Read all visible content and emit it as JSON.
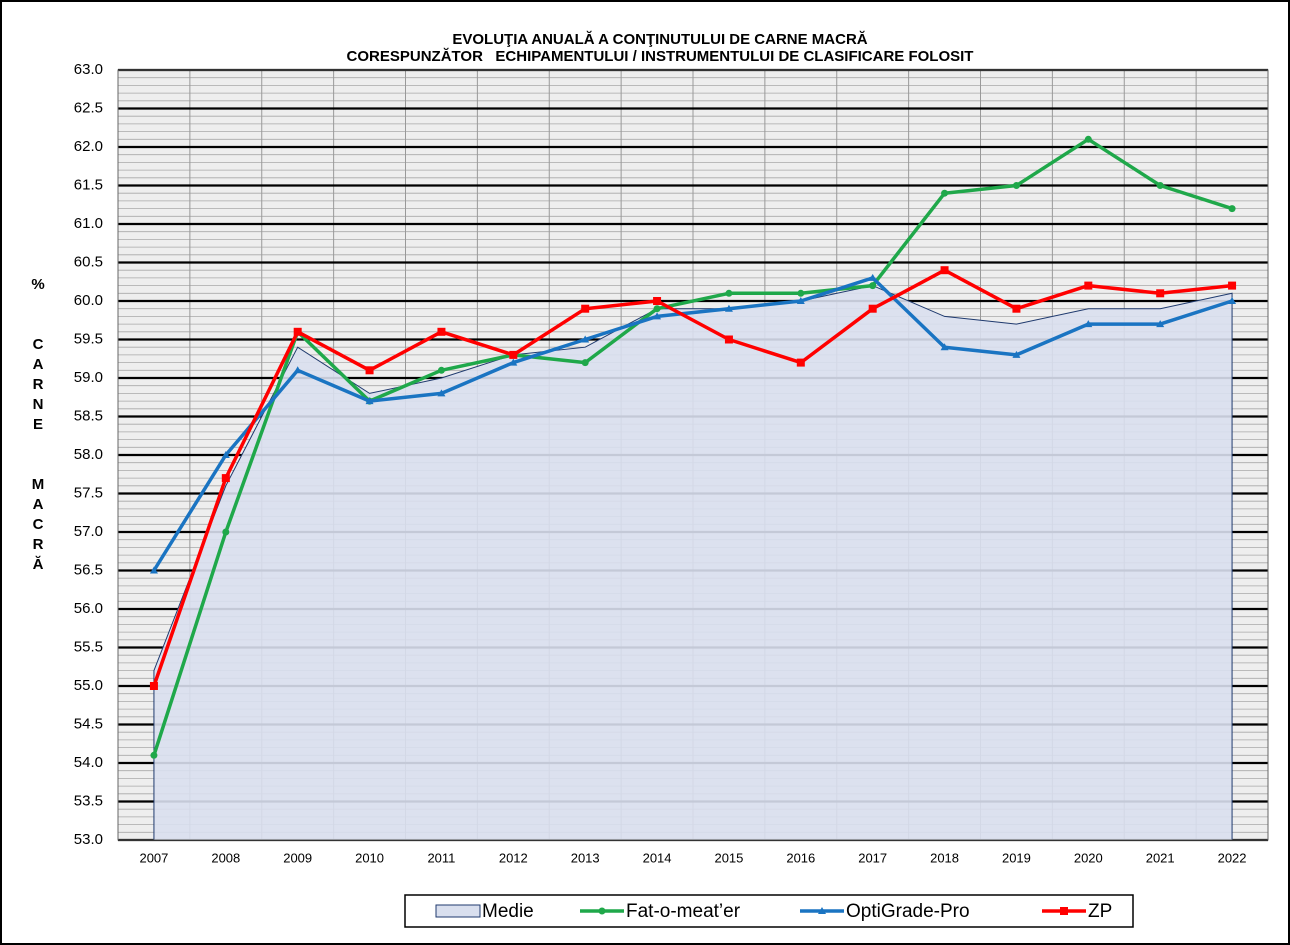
{
  "chart_data": {
    "type": "line",
    "title": "EVOLUŢIA ANUALĂ A CONŢINUTULUI DE CARNE MACRĂ",
    "subtitle": "CORESPUNZĂTOR   ECHIPAMENTULUI / INSTRUMENTULUI DE CLASIFICARE FOLOSIT",
    "y_label": "%  CARNE  MACRĂ",
    "categories": [
      "2007",
      "2008",
      "2009",
      "2010",
      "2011",
      "2012",
      "2013",
      "2014",
      "2015",
      "2016",
      "2017",
      "2018",
      "2019",
      "2020",
      "2021",
      "2022"
    ],
    "series": [
      {
        "name": "Medie",
        "kind": "area",
        "color": "#d9dfee",
        "values": [
          55.2,
          57.6,
          59.4,
          58.8,
          59.0,
          59.3,
          59.4,
          59.9,
          59.9,
          60.0,
          60.2,
          59.8,
          59.7,
          59.9,
          59.9,
          60.1
        ]
      },
      {
        "name": "Fat-o-meat’er",
        "kind": "line",
        "marker": "circle",
        "color": "#1fa84a",
        "values": [
          54.1,
          57.0,
          59.6,
          58.7,
          59.1,
          59.3,
          59.2,
          59.9,
          60.1,
          60.1,
          60.2,
          61.4,
          61.5,
          62.1,
          61.5,
          61.2
        ]
      },
      {
        "name": "OptiGrade-Pro",
        "kind": "line",
        "marker": "triangle",
        "color": "#1a74c2",
        "values": [
          56.5,
          58.0,
          59.1,
          58.7,
          58.8,
          59.2,
          59.5,
          59.8,
          59.9,
          60.0,
          60.3,
          59.4,
          59.3,
          59.7,
          59.7,
          60.0
        ]
      },
      {
        "name": "ZP",
        "kind": "line",
        "marker": "square",
        "color": "#ff0000",
        "values": [
          55.0,
          57.7,
          59.6,
          59.1,
          59.6,
          59.3,
          59.9,
          60.0,
          59.5,
          59.2,
          59.9,
          60.4,
          59.9,
          60.2,
          60.1,
          60.2
        ]
      }
    ],
    "ylim": [
      53,
      63
    ],
    "yticks": [
      {
        "value": 53,
        "label": "53.0"
      },
      53.5,
      {
        "value": 54,
        "label": "54.0"
      },
      54.5,
      {
        "value": 55,
        "label": "55.0"
      },
      55.5,
      {
        "value": 56,
        "label": "56.0"
      },
      56.5,
      {
        "value": 57,
        "label": "57.0"
      },
      57.5,
      {
        "value": 58,
        "label": "58.0"
      },
      58.5,
      {
        "value": 59,
        "label": "59.0"
      },
      59.5,
      {
        "value": 60,
        "label": "60.0"
      },
      60.5,
      {
        "value": 61,
        "label": "61.0"
      },
      61.5,
      {
        "value": 62,
        "label": "62.0"
      },
      62.5,
      {
        "value": 63,
        "label": "63.0"
      }
    ],
    "grid": true,
    "minor_grid_step": 0.1,
    "legend": "bottom"
  }
}
